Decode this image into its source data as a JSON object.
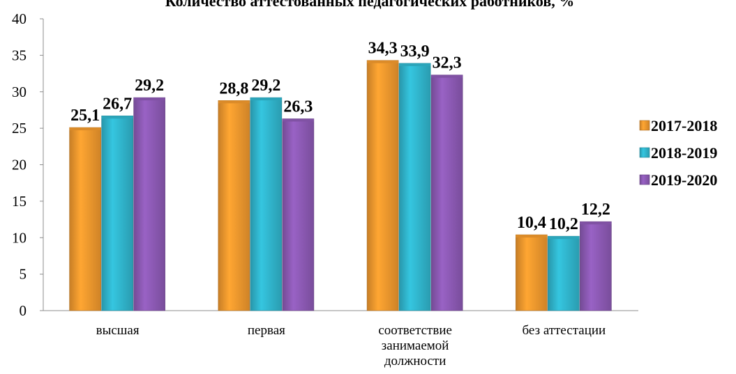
{
  "chart_data": {
    "type": "bar",
    "title": "Количество аттестованных педагогических работников, %",
    "categories": [
      [
        "высшая"
      ],
      [
        "первая"
      ],
      [
        "соответствие",
        "занимаемой",
        "должности"
      ],
      [
        "без аттестации"
      ]
    ],
    "series": [
      {
        "name": "2017-2018",
        "color": "#F39A2E",
        "values": [
          25.1,
          28.8,
          34.3,
          10.4
        ]
      },
      {
        "name": "2018-2019",
        "color": "#31B7CF",
        "values": [
          26.7,
          29.2,
          33.9,
          10.2
        ]
      },
      {
        "name": "2019-2020",
        "color": "#8E5BB6",
        "values": [
          29.2,
          26.3,
          32.3,
          12.2
        ]
      }
    ],
    "value_labels": [
      [
        "25,1",
        "28,8",
        "34,3",
        "10,4"
      ],
      [
        "26,7",
        "29,2",
        "33,9",
        "10,2"
      ],
      [
        "29,2",
        "26,3",
        "32,3",
        "12,2"
      ]
    ],
    "ylim": [
      0,
      40
    ],
    "yticks": [
      0,
      5,
      10,
      15,
      20,
      25,
      30,
      35,
      40
    ],
    "xlabel": "",
    "ylabel": "",
    "legend_position": "right",
    "grid": false
  }
}
